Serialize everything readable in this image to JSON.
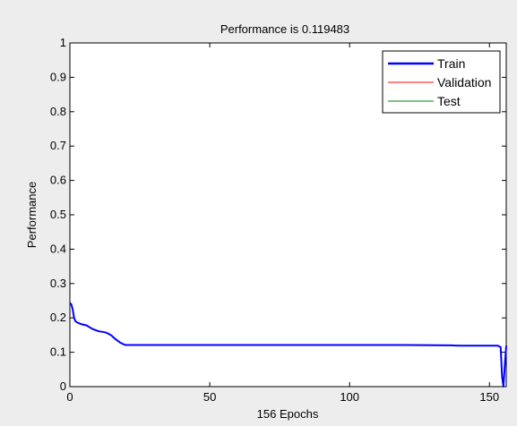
{
  "chart_data": {
    "type": "line",
    "title": "Performance is 0.119483",
    "xlabel": "156 Epochs",
    "ylabel": "Performance",
    "xlim": [
      0,
      156
    ],
    "ylim": [
      0,
      1
    ],
    "x_ticks": [
      0,
      50,
      100,
      150
    ],
    "y_ticks": [
      0,
      0.1,
      0.2,
      0.3,
      0.4,
      0.5,
      0.6,
      0.7,
      0.8,
      0.9,
      1
    ],
    "grid": false,
    "legend_position": "top-right",
    "legend": [
      "Train",
      "Validation",
      "Test"
    ],
    "series": [
      {
        "name": "Train",
        "color": "#0000ff",
        "x": [
          0,
          0.5,
          1,
          1.5,
          2,
          3,
          4,
          5,
          6,
          7,
          8,
          9,
          10,
          11,
          12,
          13,
          14,
          15,
          16,
          17,
          18,
          19,
          20,
          40,
          60,
          80,
          100,
          120,
          136,
          140,
          150,
          153,
          154,
          154.5,
          155,
          155.5,
          156
        ],
        "y": [
          0.243,
          0.24,
          0.225,
          0.2,
          0.19,
          0.185,
          0.182,
          0.18,
          0.178,
          0.173,
          0.168,
          0.165,
          0.162,
          0.16,
          0.159,
          0.157,
          0.153,
          0.148,
          0.14,
          0.134,
          0.128,
          0.124,
          0.121,
          0.121,
          0.121,
          0.121,
          0.121,
          0.121,
          0.12,
          0.119,
          0.119,
          0.119,
          0.115,
          0.03,
          0.0,
          0.065,
          0.119
        ]
      },
      {
        "name": "Validation",
        "color": "#ff0000",
        "x": [],
        "y": []
      },
      {
        "name": "Test",
        "color": "#008000",
        "x": [],
        "y": []
      }
    ]
  }
}
